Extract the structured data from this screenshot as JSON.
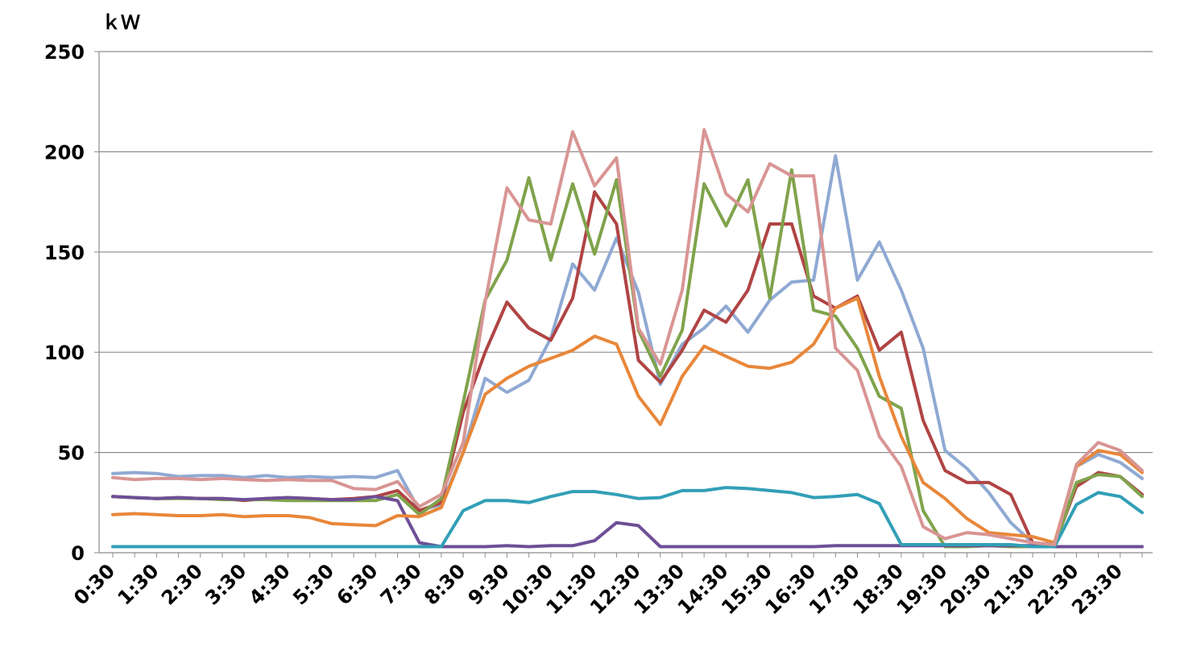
{
  "chart_data": {
    "type": "line",
    "y_label": "ｋＷ",
    "categories": [
      "0:30",
      null,
      "1:30",
      null,
      "2:30",
      null,
      "3:30",
      null,
      "4:30",
      null,
      "5:30",
      null,
      "6:30",
      null,
      "7:30",
      null,
      "8:30",
      null,
      "9:30",
      null,
      "10:30",
      null,
      "11:30",
      null,
      "12:30",
      null,
      "13:30",
      null,
      "14:30",
      null,
      "15:30",
      null,
      "16:30",
      null,
      "17:30",
      null,
      "18:30",
      null,
      "19:30",
      null,
      "20:30",
      null,
      "21:30",
      null,
      "22:30",
      null,
      "23:30",
      null
    ],
    "series": [
      {
        "color": "#8fa9d3",
        "values": [
          39.5,
          40,
          39.5,
          38,
          38.5,
          38.5,
          37.5,
          38.5,
          37.5,
          38,
          37.5,
          38,
          37.5,
          41,
          21,
          24,
          50,
          87,
          80,
          86,
          107,
          144,
          131,
          157,
          130,
          84,
          104,
          112,
          123,
          110,
          126,
          135,
          136,
          198,
          136,
          155,
          131,
          102,
          51,
          42,
          30,
          15,
          5,
          4,
          43,
          49,
          45,
          37
        ]
      },
      {
        "color": "#b04444",
        "values": [
          28,
          27.5,
          27,
          27.5,
          27,
          27,
          26,
          27,
          27.5,
          27,
          26.5,
          27,
          28,
          31,
          21,
          25,
          70,
          100,
          125,
          112,
          106,
          127,
          180,
          164,
          96,
          85,
          101,
          121,
          115,
          131,
          164,
          164,
          128,
          122,
          128,
          101,
          110,
          66,
          41,
          35,
          35,
          29,
          5,
          4,
          33,
          40,
          38,
          29
        ]
      },
      {
        "color": "#80a34c",
        "values": [
          28,
          27.5,
          27,
          27,
          27,
          26.5,
          26.5,
          26.5,
          26,
          26,
          26,
          26,
          26,
          29,
          19,
          27,
          75,
          126,
          146,
          187,
          146,
          184,
          149,
          186,
          111,
          88,
          111,
          184,
          163,
          186,
          127,
          191,
          121,
          118,
          102,
          78,
          72,
          21,
          3,
          3,
          3.5,
          3,
          3,
          3,
          35,
          39,
          38,
          28
        ]
      },
      {
        "color": "#6e4f96",
        "values": [
          28,
          27.5,
          27,
          27.5,
          27,
          27,
          26.5,
          27,
          27.5,
          27,
          26.5,
          26.5,
          28,
          26,
          5,
          3,
          3,
          3,
          3.5,
          3,
          3.5,
          3.5,
          6,
          15,
          13.5,
          3,
          3,
          3,
          3,
          3,
          3,
          3,
          3,
          3.5,
          3.5,
          3.5,
          3.5,
          3.5,
          3.5,
          3.5,
          3.5,
          3.5,
          3.5,
          3,
          3,
          3,
          3,
          3
        ]
      },
      {
        "color": "#329fb7",
        "values": [
          3,
          3,
          3,
          3,
          3,
          3,
          3,
          3,
          3,
          3,
          3,
          3,
          3,
          3,
          3,
          3,
          21,
          26,
          26,
          25,
          28,
          30.5,
          30.5,
          29,
          27,
          27.5,
          31,
          31,
          32.5,
          32,
          31,
          30,
          27.5,
          28,
          29,
          24.5,
          4,
          4,
          4,
          4,
          4,
          4,
          3,
          3,
          24,
          30,
          28,
          20
        ]
      },
      {
        "color": "#e8873a",
        "values": [
          19,
          19.5,
          19,
          18.5,
          18.5,
          19,
          18,
          18.5,
          18.5,
          17.5,
          14.5,
          14,
          13.5,
          18.5,
          18,
          22.5,
          50,
          79,
          87,
          93,
          97,
          101,
          108,
          104,
          78,
          64,
          88,
          103,
          98,
          93,
          92,
          95,
          104,
          122,
          127,
          88,
          58,
          35,
          27,
          17,
          10,
          9,
          8,
          5,
          43,
          51,
          49,
          40
        ]
      },
      {
        "color": "#d89594",
        "values": [
          37.5,
          36.5,
          37,
          37,
          36.5,
          37,
          36.5,
          36,
          36.5,
          36,
          36,
          32,
          31.5,
          35.5,
          23,
          29,
          55,
          125,
          182,
          166,
          164,
          210,
          183,
          197,
          112,
          94,
          131,
          211,
          179,
          170,
          194,
          188,
          188,
          102,
          91,
          58,
          43,
          13,
          7,
          10,
          9,
          7,
          5,
          4,
          44,
          55,
          51,
          41
        ]
      }
    ],
    "ylim": [
      0,
      250
    ],
    "yticks": [
      0,
      50,
      100,
      150,
      200,
      250
    ],
    "grid": true
  }
}
